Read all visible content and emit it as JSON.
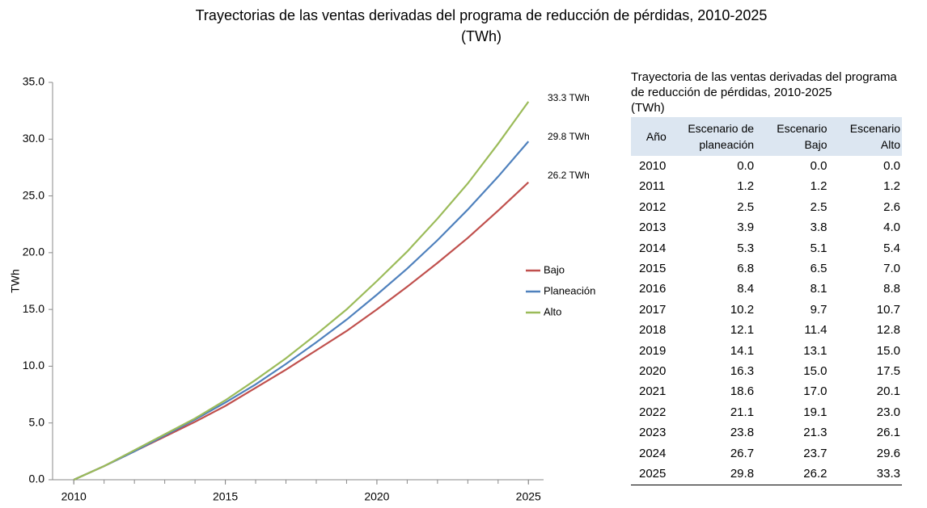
{
  "chart_data": {
    "type": "line",
    "title": "Trayectorias de las ventas derivadas del programa de reducción de pérdidas, 2010-2025",
    "subtitle": "(TWh)",
    "y_label": "TWh",
    "x": [
      2010,
      2011,
      2012,
      2013,
      2014,
      2015,
      2016,
      2017,
      2018,
      2019,
      2020,
      2021,
      2022,
      2023,
      2024,
      2025
    ],
    "xlim": [
      2009.3,
      2025.5
    ],
    "xticks": [
      2010,
      2015,
      2020,
      2025
    ],
    "ylim": [
      0,
      35
    ],
    "yticks": [
      {
        "value": 0,
        "label": "0.0"
      },
      {
        "value": 5,
        "label": "5.0"
      },
      {
        "value": 10,
        "label": "10.0"
      },
      {
        "value": 15,
        "label": "15.0"
      },
      {
        "value": 20,
        "label": "20.0"
      },
      {
        "value": 25,
        "label": "25.0"
      },
      {
        "value": 30,
        "label": "30.0"
      },
      {
        "value": 35,
        "label": "35.0"
      }
    ],
    "series": [
      {
        "name": "Bajo",
        "color": "#c0504d",
        "values": [
          0.0,
          1.2,
          2.5,
          3.8,
          5.1,
          6.5,
          8.1,
          9.7,
          11.4,
          13.1,
          15.0,
          17.0,
          19.1,
          21.3,
          23.7,
          26.2
        ]
      },
      {
        "name": "Planeación",
        "color": "#4f81bd",
        "values": [
          0.0,
          1.2,
          2.5,
          3.9,
          5.3,
          6.8,
          8.4,
          10.2,
          12.1,
          14.1,
          16.3,
          18.6,
          21.1,
          23.8,
          26.7,
          29.8
        ]
      },
      {
        "name": "Alto",
        "color": "#9bbb59",
        "values": [
          0.0,
          1.2,
          2.6,
          4.0,
          5.4,
          7.0,
          8.8,
          10.7,
          12.8,
          15.0,
          17.5,
          20.1,
          23.0,
          26.1,
          29.6,
          33.3
        ]
      }
    ],
    "annotations": [
      "33.3 TWh",
      "29.8 TWh",
      "26.2 TWh"
    ]
  },
  "table": {
    "title": "Trayectoria de las ventas derivadas del programa de reducción de pérdidas, 2010-2025",
    "unit": "(TWh)",
    "columns": [
      "Año",
      "Escenario de planeación",
      "Escenario Bajo",
      "Escenario Alto"
    ],
    "rows": [
      [
        "2010",
        "0.0",
        "0.0",
        "0.0"
      ],
      [
        "2011",
        "1.2",
        "1.2",
        "1.2"
      ],
      [
        "2012",
        "2.5",
        "2.5",
        "2.6"
      ],
      [
        "2013",
        "3.9",
        "3.8",
        "4.0"
      ],
      [
        "2014",
        "5.3",
        "5.1",
        "5.4"
      ],
      [
        "2015",
        "6.8",
        "6.5",
        "7.0"
      ],
      [
        "2016",
        "8.4",
        "8.1",
        "8.8"
      ],
      [
        "2017",
        "10.2",
        "9.7",
        "10.7"
      ],
      [
        "2018",
        "12.1",
        "11.4",
        "12.8"
      ],
      [
        "2019",
        "14.1",
        "13.1",
        "15.0"
      ],
      [
        "2020",
        "16.3",
        "15.0",
        "17.5"
      ],
      [
        "2021",
        "18.6",
        "17.0",
        "20.1"
      ],
      [
        "2022",
        "21.1",
        "19.1",
        "23.0"
      ],
      [
        "2023",
        "23.8",
        "21.3",
        "26.1"
      ],
      [
        "2024",
        "26.7",
        "23.7",
        "29.6"
      ],
      [
        "2025",
        "29.8",
        "26.2",
        "33.3"
      ]
    ]
  }
}
